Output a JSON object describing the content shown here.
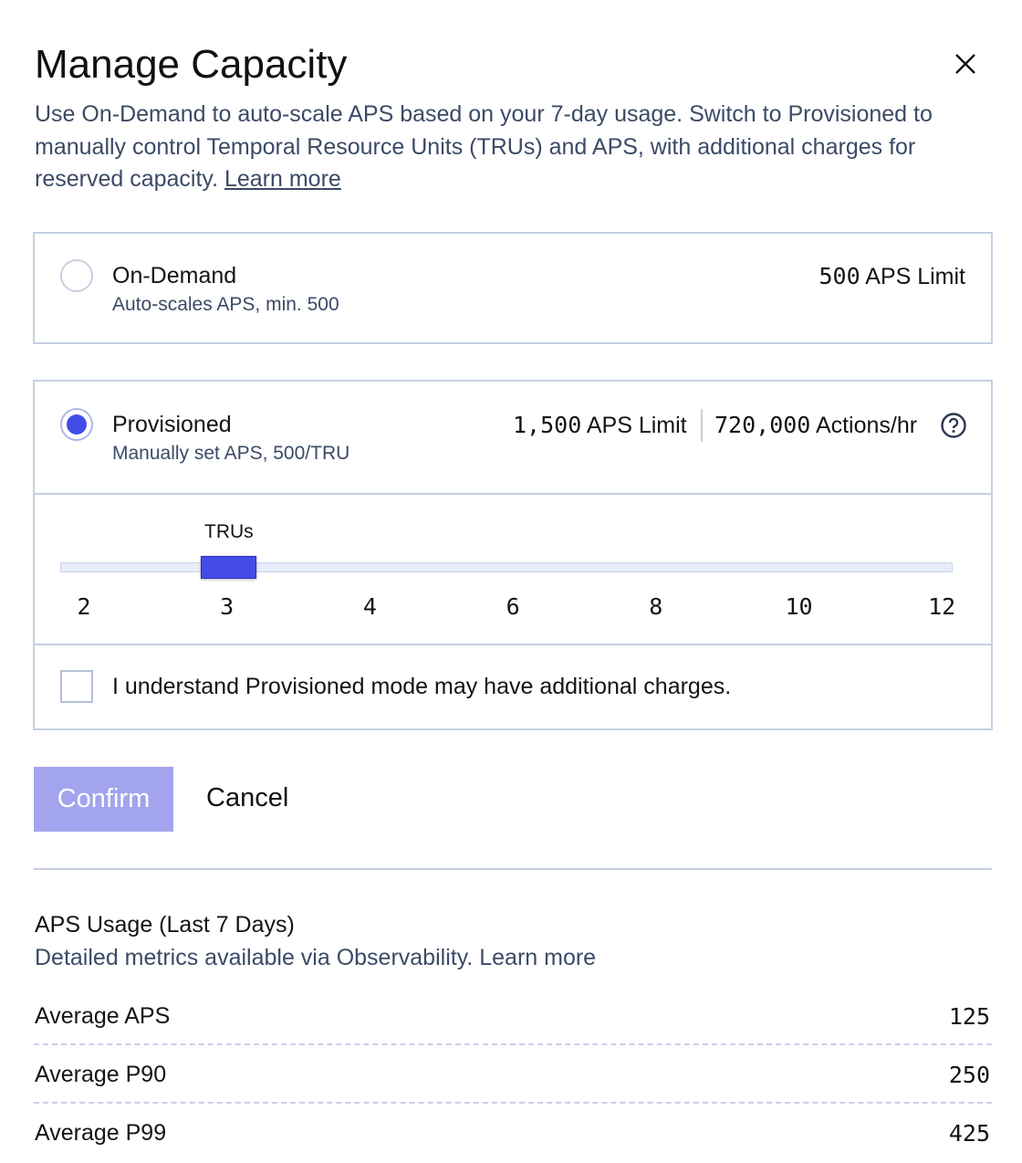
{
  "dialog": {
    "title": "Manage Capacity",
    "description": "Use On-Demand to auto-scale APS based on your 7-day usage. Switch to Provisioned to manually control Temporal Resource Units (TRUs) and APS, with additional charges for reserved capacity.",
    "learn_more": "Learn more"
  },
  "options": {
    "on_demand": {
      "title": "On-Demand",
      "subtitle": "Auto-scales APS, min. 500",
      "limit_value": "500",
      "limit_label": "APS Limit",
      "selected": false
    },
    "provisioned": {
      "title": "Provisioned",
      "subtitle": "Manually set APS, 500/TRU",
      "limit_value": "1,500",
      "limit_label": "APS Limit",
      "actions_value": "720,000",
      "actions_label": "Actions/hr",
      "selected": true
    }
  },
  "slider": {
    "label": "TRUs",
    "ticks": [
      "2",
      "3",
      "4",
      "6",
      "8",
      "10",
      "12"
    ],
    "value": "3"
  },
  "acknowledge": {
    "label": "I understand Provisioned mode may have additional charges.",
    "checked": false
  },
  "buttons": {
    "confirm": "Confirm",
    "cancel": "Cancel"
  },
  "usage": {
    "title": "APS Usage (Last 7 Days)",
    "subtitle": "Detailed metrics available via Observability. Learn more",
    "rows": [
      {
        "label": "Average APS",
        "value": "125"
      },
      {
        "label": "Average P90",
        "value": "250"
      },
      {
        "label": "Average P99",
        "value": "425"
      }
    ]
  },
  "colors": {
    "accent": "#444ce7",
    "confirm_disabled": "#a2a4ee",
    "border": "#c7d0e2",
    "secondary_text": "#3b4a66"
  }
}
